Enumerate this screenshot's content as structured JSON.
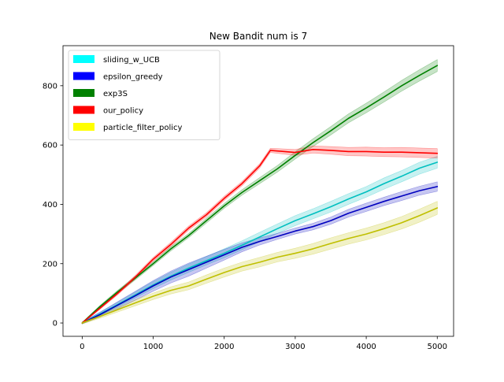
{
  "chart_data": {
    "type": "line",
    "title": "New Bandit num is 7",
    "xlabel": "",
    "ylabel": "",
    "xlim": [
      -270,
      5230
    ],
    "ylim": [
      -45,
      935
    ],
    "xticks": [
      0,
      1000,
      2000,
      3000,
      4000,
      5000
    ],
    "xtick_labels": [
      "0",
      "1000",
      "2000",
      "3000",
      "4000",
      "5000"
    ],
    "yticks": [
      0,
      200,
      400,
      600,
      800
    ],
    "ytick_labels": [
      "0",
      "200",
      "400",
      "600",
      "800"
    ],
    "grid": false,
    "legend_position": "top-left",
    "series": [
      {
        "name": "sliding_w_UCB",
        "color": "#00bfbf",
        "legend_color": "#00ffff",
        "x": [
          0,
          250,
          500,
          750,
          1000,
          1250,
          1500,
          1750,
          2000,
          2250,
          2500,
          2750,
          3000,
          3250,
          3500,
          3750,
          4000,
          4250,
          4500,
          4750,
          5000
        ],
        "y": [
          0,
          30,
          62,
          95,
          128,
          158,
          185,
          210,
          235,
          262,
          290,
          318,
          345,
          368,
          392,
          418,
          442,
          470,
          495,
          522,
          542
        ],
        "band": [
          3,
          6,
          8,
          10,
          12,
          13,
          14,
          14,
          15,
          15,
          16,
          16,
          17,
          17,
          18,
          18,
          18,
          19,
          19,
          20,
          20
        ]
      },
      {
        "name": "epsilon_greedy",
        "color": "#0000bf",
        "legend_color": "#0000ff",
        "x": [
          0,
          250,
          500,
          750,
          1000,
          1250,
          1500,
          1750,
          2000,
          2250,
          2500,
          2750,
          3000,
          3250,
          3500,
          3750,
          4000,
          4250,
          4500,
          4750,
          5000
        ],
        "y": [
          0,
          28,
          60,
          92,
          125,
          155,
          180,
          205,
          230,
          255,
          275,
          292,
          310,
          325,
          345,
          370,
          390,
          410,
          428,
          446,
          460
        ],
        "band": [
          3,
          8,
          12,
          15,
          18,
          20,
          22,
          20,
          18,
          15,
          12,
          10,
          10,
          11,
          12,
          13,
          14,
          14,
          15,
          15,
          16
        ]
      },
      {
        "name": "exp3S",
        "color": "#008000",
        "legend_color": "#008000",
        "x": [
          0,
          250,
          500,
          750,
          1000,
          1250,
          1500,
          1750,
          2000,
          2250,
          2500,
          2750,
          3000,
          3250,
          3500,
          3750,
          4000,
          4250,
          4500,
          4750,
          5000
        ],
        "y": [
          0,
          55,
          105,
          152,
          200,
          250,
          295,
          345,
          395,
          440,
          480,
          520,
          565,
          608,
          648,
          690,
          725,
          762,
          800,
          835,
          868
        ],
        "band": [
          2,
          4,
          5,
          6,
          6,
          7,
          7,
          8,
          8,
          9,
          10,
          11,
          12,
          13,
          14,
          15,
          16,
          17,
          18,
          19,
          20
        ]
      },
      {
        "name": "our_policy",
        "color": "#ff0000",
        "legend_color": "#ff0000",
        "x": [
          0,
          250,
          500,
          750,
          1000,
          1250,
          1500,
          1750,
          2000,
          2250,
          2500,
          2650,
          2750,
          3000,
          3250,
          3500,
          3750,
          4000,
          4250,
          4500,
          4750,
          5000
        ],
        "y": [
          0,
          50,
          100,
          155,
          215,
          265,
          320,
          365,
          420,
          470,
          530,
          582,
          580,
          575,
          585,
          582,
          578,
          578,
          576,
          576,
          574,
          572
        ],
        "band": [
          2,
          4,
          5,
          6,
          6,
          7,
          7,
          7,
          7,
          7,
          7,
          7,
          8,
          10,
          12,
          13,
          14,
          15,
          15,
          16,
          16,
          16
        ]
      },
      {
        "name": "particle_filter_policy",
        "color": "#bfbf00",
        "legend_color": "#ffff00",
        "x": [
          0,
          250,
          500,
          750,
          1000,
          1250,
          1500,
          1750,
          2000,
          2250,
          2500,
          2750,
          3000,
          3250,
          3500,
          3750,
          4000,
          4250,
          4500,
          4750,
          5000
        ],
        "y": [
          0,
          22,
          45,
          68,
          90,
          110,
          125,
          148,
          170,
          190,
          205,
          222,
          235,
          250,
          268,
          285,
          300,
          318,
          338,
          362,
          388
        ],
        "band": [
          3,
          6,
          8,
          10,
          11,
          12,
          13,
          14,
          15,
          15,
          16,
          16,
          17,
          18,
          19,
          19,
          20,
          20,
          21,
          22,
          22
        ]
      }
    ]
  }
}
